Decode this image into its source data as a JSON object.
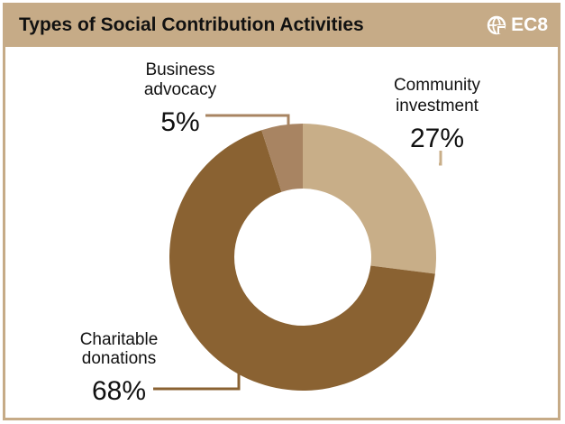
{
  "header": {
    "title": "Types of Social Contribution Activities",
    "badge_label": "EC8",
    "badge_icon": "globe-icon"
  },
  "colors": {
    "header_bg": "#c6ab87",
    "frame": "#c6ab87"
  },
  "chart_data": {
    "type": "pie",
    "style": "donut",
    "title": "Types of Social Contribution Activities",
    "slices": [
      {
        "label_lines": [
          "Community",
          "investment"
        ],
        "value": 27,
        "value_label": "27%",
        "color": "#c8ae88"
      },
      {
        "label_lines": [
          "Charitable",
          "donations"
        ],
        "value": 68,
        "value_label": "68%",
        "color": "#8a6232"
      },
      {
        "label_lines": [
          "Business",
          "advocacy"
        ],
        "value": 5,
        "value_label": "5%",
        "color": "#a88462"
      }
    ]
  }
}
